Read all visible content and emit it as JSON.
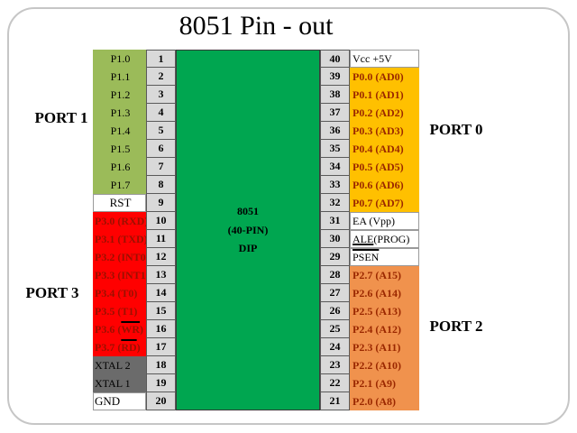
{
  "title": "8051 Pin - out",
  "chip": {
    "line1": "8051",
    "line2": "(40-PIN)",
    "line3": "DIP"
  },
  "port_labels": {
    "port1": "PORT 1",
    "port3": "PORT 3",
    "port0": "PORT 0",
    "port2": "PORT 2"
  },
  "colors": {
    "chip_green": "#00A650",
    "number_cell_bg": "#D9D9D9",
    "frame_border": "#C6C6C6",
    "port1_green": "#9BBB59",
    "port3_red": "#FF0000",
    "port0_amber": "#FFC000",
    "port2_orange": "#F0924D",
    "xtal_gray": "#6B6B6B",
    "pin_accent_text": "#9B2300"
  },
  "groups": {
    "p1": {
      "bg": "#9BBB59",
      "fg": "#000000",
      "bold": false
    },
    "p3": {
      "bg": "#FF0000",
      "fg": "#9B1000",
      "bold": true
    },
    "p0": {
      "bg": "#FFC000",
      "fg": "#9B2800",
      "bold": true
    },
    "p2": {
      "bg": "#F0924D",
      "fg": "#9B2800",
      "bold": true
    },
    "xtal": {
      "bg": "#6B6B6B",
      "fg": "#000000",
      "bold": false
    },
    "white": {
      "bg": "#FFFFFF",
      "fg": "#000000",
      "bold": false
    }
  },
  "left_pins": [
    {
      "num": "1",
      "label": "P1.0",
      "group": "p1",
      "align": "center"
    },
    {
      "num": "2",
      "label": "P1.1",
      "group": "p1",
      "align": "center"
    },
    {
      "num": "3",
      "label": "P1.2",
      "group": "p1",
      "align": "center"
    },
    {
      "num": "4",
      "label": "P1.3",
      "group": "p1",
      "align": "center"
    },
    {
      "num": "5",
      "label": "P1.4",
      "group": "p1",
      "align": "center"
    },
    {
      "num": "6",
      "label": "P1.5",
      "group": "p1",
      "align": "center"
    },
    {
      "num": "7",
      "label": "P1.6",
      "group": "p1",
      "align": "center"
    },
    {
      "num": "8",
      "label": "P1.7",
      "group": "p1",
      "align": "center"
    },
    {
      "num": "9",
      "label": "RST",
      "group": "white",
      "align": "center"
    },
    {
      "num": "10",
      "label": "P3.0 (RXD)",
      "group": "p3",
      "align": "left"
    },
    {
      "num": "11",
      "label": "P3.1 (TXD)",
      "group": "p3",
      "align": "left"
    },
    {
      "num": "12",
      "label": "P3.2 (INT0)",
      "group": "p3",
      "align": "left"
    },
    {
      "num": "13",
      "label": "P3.3 (INT1)",
      "group": "p3",
      "align": "left"
    },
    {
      "num": "14",
      "label": "P3.4 (T0)",
      "group": "p3",
      "align": "left"
    },
    {
      "num": "15",
      "label": "P3.5 (T1)",
      "group": "p3",
      "align": "left"
    },
    {
      "num": "16",
      "label": "P3.6 (WR)",
      "group": "p3",
      "align": "left",
      "mark": "WR",
      "mark_style": "overline"
    },
    {
      "num": "17",
      "label": "P3.7 (RD)",
      "group": "p3",
      "align": "left",
      "mark": "RD",
      "mark_style": "overline"
    },
    {
      "num": "18",
      "label": "XTAL 2",
      "group": "xtal",
      "align": "left"
    },
    {
      "num": "19",
      "label": "XTAL 1",
      "group": "xtal",
      "align": "left"
    },
    {
      "num": "20",
      "label": "GND",
      "group": "white",
      "align": "left"
    }
  ],
  "right_pins": [
    {
      "num": "40",
      "label": "Vcc +5V",
      "group": "white"
    },
    {
      "num": "39",
      "label": "P0.0 (AD0)",
      "group": "p0"
    },
    {
      "num": "38",
      "label": "P0.1 (AD1)",
      "group": "p0"
    },
    {
      "num": "37",
      "label": "P0.2 (AD2)",
      "group": "p0"
    },
    {
      "num": "36",
      "label": "P0.3 (AD3)",
      "group": "p0"
    },
    {
      "num": "35",
      "label": "P0.4 (AD4)",
      "group": "p0"
    },
    {
      "num": "34",
      "label": "P0.5 (AD5)",
      "group": "p0"
    },
    {
      "num": "33",
      "label": "P0.6 (AD6)",
      "group": "p0"
    },
    {
      "num": "32",
      "label": "P0.7 (AD7)",
      "group": "p0"
    },
    {
      "num": "31",
      "label": "EA (Vpp)",
      "group": "white"
    },
    {
      "num": "30",
      "label": "ALE (PROG)",
      "group": "white",
      "mark": "ALE",
      "mark_style": "underline"
    },
    {
      "num": "29",
      "label": "PSEN",
      "group": "white",
      "mark": "PSEN",
      "mark_style": "overline"
    },
    {
      "num": "28",
      "label": "P2.7 (A15)",
      "group": "p2"
    },
    {
      "num": "27",
      "label": "P2.6 (A14)",
      "group": "p2"
    },
    {
      "num": "26",
      "label": "P2.5 (A13)",
      "group": "p2"
    },
    {
      "num": "25",
      "label": "P2.4 (A12)",
      "group": "p2"
    },
    {
      "num": "24",
      "label": "P2.3 (A11)",
      "group": "p2"
    },
    {
      "num": "23",
      "label": "P2.2 (A10)",
      "group": "p2"
    },
    {
      "num": "22",
      "label": "P2.1 (A9)",
      "group": "p2"
    },
    {
      "num": "21",
      "label": "P2.0 (A8)",
      "group": "p2"
    }
  ]
}
